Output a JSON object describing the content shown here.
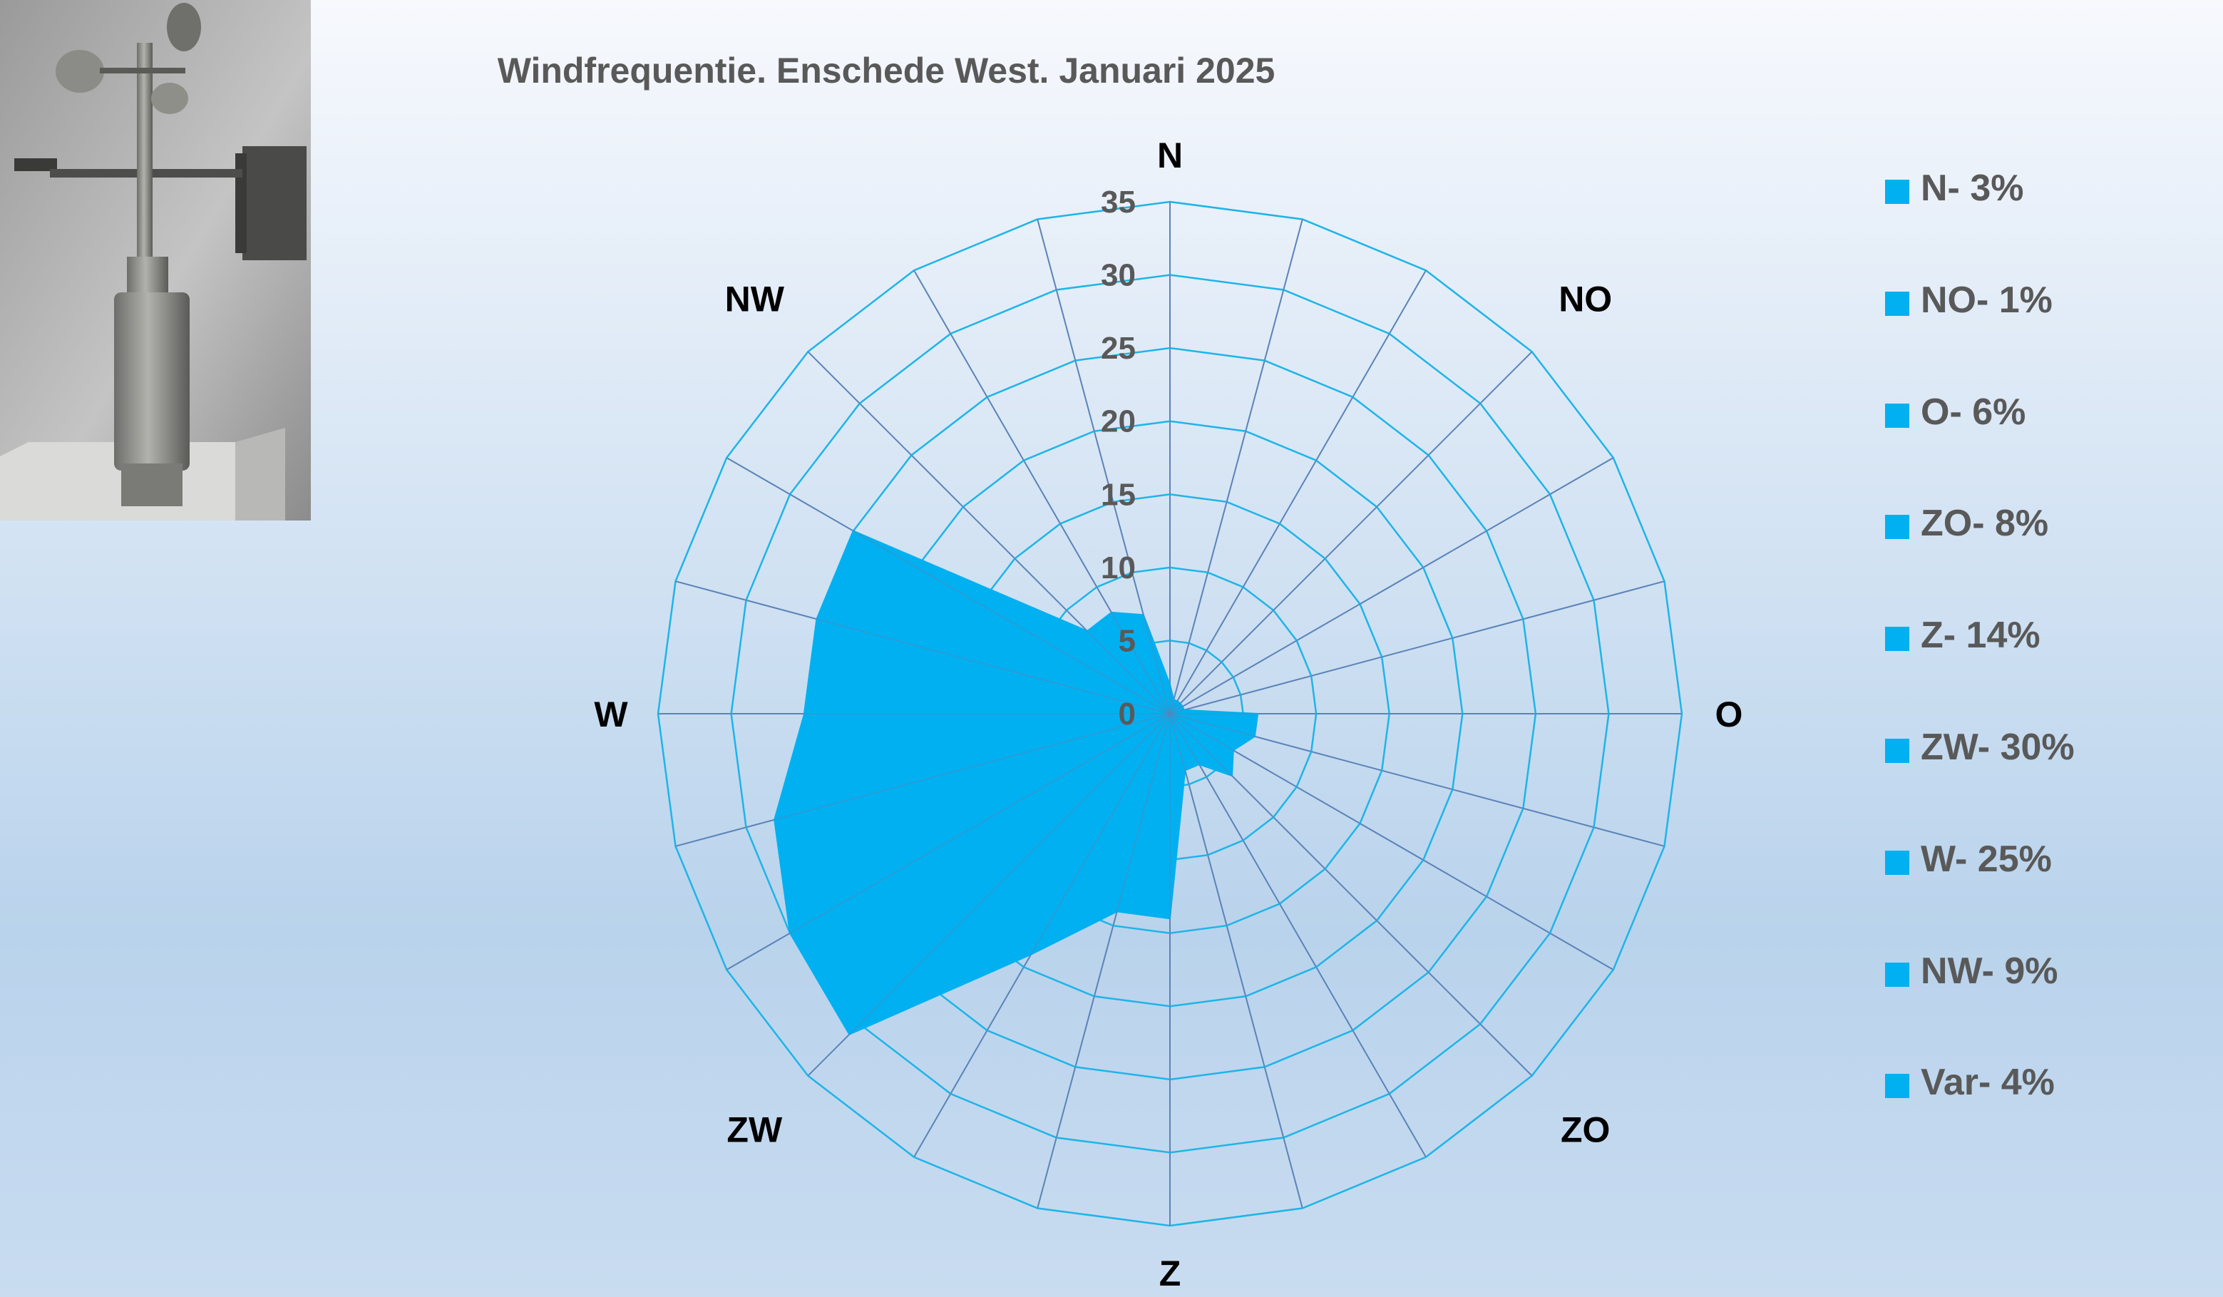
{
  "photo": {
    "subject": "anemometer with wind vane",
    "icon": "anemometer-photo"
  },
  "chart_data": {
    "type": "radar",
    "title": "Windfrequentie. Enschede West. Januari 2025",
    "unit": "%",
    "directions": [
      "N",
      "NO",
      "O",
      "ZO",
      "Z",
      "ZW",
      "W",
      "NW"
    ],
    "radial_ticks": [
      "0",
      "5",
      "10",
      "15",
      "20",
      "25",
      "30",
      "35"
    ],
    "rlim": [
      0,
      35
    ],
    "rings": 7,
    "spokes": 24,
    "series": [
      {
        "values": [
          2,
          1,
          1,
          1,
          1,
          1,
          6,
          6,
          5,
          6,
          4,
          4,
          14,
          14,
          19,
          31,
          30,
          28,
          25,
          25,
          25,
          8,
          8,
          7
        ]
      }
    ],
    "legend": [
      "N- 3%",
      "NO- 1%",
      "O- 6%",
      "ZO- 8%",
      "Z- 14%",
      "ZW- 30%",
      "W- 25%",
      "NW- 9%",
      "Var- 4%"
    ],
    "legend_position": "right",
    "grid": true,
    "colors": {
      "fill": "#00b0f0",
      "grid": "#1eb4e8",
      "spoke": "#5b84b8",
      "text": "#595959",
      "dir_text": "#000000"
    }
  }
}
